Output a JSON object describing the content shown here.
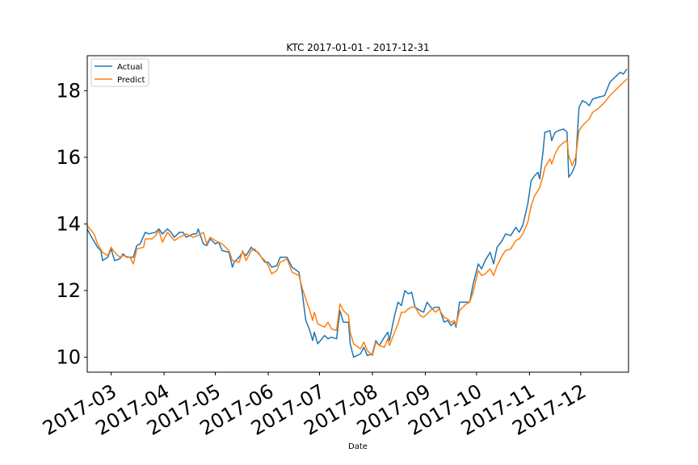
{
  "chart_data": {
    "type": "line",
    "title": "KTC 2017-01-01 - 2017-12-31",
    "xlabel": "Date",
    "ylabel": "",
    "xlim": [
      "2017-02-15",
      "2017-12-29"
    ],
    "ylim": [
      9.55,
      19.05
    ],
    "yticks": [
      10,
      12,
      14,
      16,
      18
    ],
    "xticks": [
      {
        "date": "2017-03-01",
        "label": "2017-03"
      },
      {
        "date": "2017-04-01",
        "label": "2017-04"
      },
      {
        "date": "2017-05-01",
        "label": "2017-05"
      },
      {
        "date": "2017-06-01",
        "label": "2017-06"
      },
      {
        "date": "2017-07-01",
        "label": "2017-07"
      },
      {
        "date": "2017-08-01",
        "label": "2017-08"
      },
      {
        "date": "2017-09-01",
        "label": "2017-09"
      },
      {
        "date": "2017-10-01",
        "label": "2017-10"
      },
      {
        "date": "2017-11-01",
        "label": "2017-11"
      },
      {
        "date": "2017-12-01",
        "label": "2017-12"
      }
    ],
    "grid": false,
    "legend": "upper left",
    "series": [
      {
        "name": "Actual",
        "color": "#1f77b4",
        "points": [
          [
            "2017-02-15",
            13.85
          ],
          [
            "2017-02-17",
            13.65
          ],
          [
            "2017-02-21",
            13.3
          ],
          [
            "2017-02-23",
            13.2
          ],
          [
            "2017-02-24",
            12.9
          ],
          [
            "2017-02-27",
            13.0
          ],
          [
            "2017-03-01",
            13.25
          ],
          [
            "2017-03-03",
            12.9
          ],
          [
            "2017-03-06",
            12.95
          ],
          [
            "2017-03-08",
            13.1
          ],
          [
            "2017-03-10",
            13.0
          ],
          [
            "2017-03-14",
            13.0
          ],
          [
            "2017-03-16",
            13.35
          ],
          [
            "2017-03-18",
            13.4
          ],
          [
            "2017-03-21",
            13.75
          ],
          [
            "2017-03-23",
            13.7
          ],
          [
            "2017-03-27",
            13.75
          ],
          [
            "2017-03-29",
            13.85
          ],
          [
            "2017-03-31",
            13.7
          ],
          [
            "2017-04-03",
            13.85
          ],
          [
            "2017-04-05",
            13.75
          ],
          [
            "2017-04-07",
            13.6
          ],
          [
            "2017-04-10",
            13.75
          ],
          [
            "2017-04-12",
            13.75
          ],
          [
            "2017-04-14",
            13.6
          ],
          [
            "2017-04-18",
            13.7
          ],
          [
            "2017-04-20",
            13.7
          ],
          [
            "2017-04-21",
            13.85
          ],
          [
            "2017-04-24",
            13.4
          ],
          [
            "2017-04-26",
            13.35
          ],
          [
            "2017-04-28",
            13.55
          ],
          [
            "2017-05-01",
            13.4
          ],
          [
            "2017-05-03",
            13.45
          ],
          [
            "2017-05-05",
            13.2
          ],
          [
            "2017-05-09",
            13.15
          ],
          [
            "2017-05-11",
            12.7
          ],
          [
            "2017-05-12",
            12.85
          ],
          [
            "2017-05-15",
            13.0
          ],
          [
            "2017-05-17",
            13.15
          ],
          [
            "2017-05-19",
            13.05
          ],
          [
            "2017-05-22",
            13.3
          ],
          [
            "2017-05-24",
            13.2
          ],
          [
            "2017-05-26",
            13.15
          ],
          [
            "2017-05-30",
            12.85
          ],
          [
            "2017-06-01",
            12.85
          ],
          [
            "2017-06-03",
            12.7
          ],
          [
            "2017-06-06",
            12.75
          ],
          [
            "2017-06-08",
            13.0
          ],
          [
            "2017-06-12",
            13.0
          ],
          [
            "2017-06-15",
            12.7
          ],
          [
            "2017-06-19",
            12.55
          ],
          [
            "2017-06-21",
            11.9
          ],
          [
            "2017-06-23",
            11.1
          ],
          [
            "2017-06-25",
            10.85
          ],
          [
            "2017-06-27",
            10.5
          ],
          [
            "2017-06-28",
            10.75
          ],
          [
            "2017-06-30",
            10.4
          ],
          [
            "2017-07-04",
            10.65
          ],
          [
            "2017-07-06",
            10.55
          ],
          [
            "2017-07-08",
            10.6
          ],
          [
            "2017-07-11",
            10.55
          ],
          [
            "2017-07-13",
            11.4
          ],
          [
            "2017-07-15",
            11.05
          ],
          [
            "2017-07-18",
            11.05
          ],
          [
            "2017-07-19",
            10.4
          ],
          [
            "2017-07-21",
            10.0
          ],
          [
            "2017-07-25",
            10.1
          ],
          [
            "2017-07-27",
            10.3
          ],
          [
            "2017-07-29",
            10.05
          ],
          [
            "2017-08-01",
            10.1
          ],
          [
            "2017-08-03",
            10.5
          ],
          [
            "2017-08-05",
            10.35
          ],
          [
            "2017-08-08",
            10.6
          ],
          [
            "2017-08-10",
            10.75
          ],
          [
            "2017-08-11",
            10.5
          ],
          [
            "2017-08-14",
            11.25
          ],
          [
            "2017-08-16",
            11.65
          ],
          [
            "2017-08-18",
            11.55
          ],
          [
            "2017-08-20",
            12.0
          ],
          [
            "2017-08-22",
            11.9
          ],
          [
            "2017-08-24",
            11.95
          ],
          [
            "2017-08-26",
            11.5
          ],
          [
            "2017-08-29",
            11.4
          ],
          [
            "2017-08-31",
            11.35
          ],
          [
            "2017-09-02",
            11.65
          ],
          [
            "2017-09-05",
            11.45
          ],
          [
            "2017-09-07",
            11.5
          ],
          [
            "2017-09-09",
            11.5
          ],
          [
            "2017-09-12",
            11.05
          ],
          [
            "2017-09-14",
            11.1
          ],
          [
            "2017-09-16",
            10.95
          ],
          [
            "2017-09-18",
            11.05
          ],
          [
            "2017-09-19",
            10.9
          ],
          [
            "2017-09-21",
            11.65
          ],
          [
            "2017-09-25",
            11.65
          ],
          [
            "2017-09-27",
            11.65
          ],
          [
            "2017-09-29",
            12.2
          ],
          [
            "2017-10-02",
            12.8
          ],
          [
            "2017-10-04",
            12.65
          ],
          [
            "2017-10-06",
            12.9
          ],
          [
            "2017-10-09",
            13.15
          ],
          [
            "2017-10-11",
            12.8
          ],
          [
            "2017-10-13",
            13.3
          ],
          [
            "2017-10-16",
            13.5
          ],
          [
            "2017-10-18",
            13.7
          ],
          [
            "2017-10-21",
            13.65
          ],
          [
            "2017-10-24",
            13.9
          ],
          [
            "2017-10-26",
            13.75
          ],
          [
            "2017-10-28",
            13.95
          ],
          [
            "2017-10-31",
            14.6
          ],
          [
            "2017-11-02",
            15.3
          ],
          [
            "2017-11-04",
            15.45
          ],
          [
            "2017-11-06",
            15.55
          ],
          [
            "2017-11-07",
            15.35
          ],
          [
            "2017-11-09",
            16.2
          ],
          [
            "2017-11-10",
            16.75
          ],
          [
            "2017-11-13",
            16.8
          ],
          [
            "2017-11-14",
            16.5
          ],
          [
            "2017-11-16",
            16.75
          ],
          [
            "2017-11-18",
            16.8
          ],
          [
            "2017-11-21",
            16.85
          ],
          [
            "2017-11-23",
            16.75
          ],
          [
            "2017-11-24",
            15.4
          ],
          [
            "2017-11-26",
            15.55
          ],
          [
            "2017-11-28",
            15.8
          ],
          [
            "2017-11-30",
            17.5
          ],
          [
            "2017-12-02",
            17.7
          ],
          [
            "2017-12-04",
            17.65
          ],
          [
            "2017-12-06",
            17.55
          ],
          [
            "2017-12-08",
            17.75
          ],
          [
            "2017-12-11",
            17.8
          ],
          [
            "2017-12-15",
            17.85
          ],
          [
            "2017-12-18",
            18.25
          ],
          [
            "2017-12-22",
            18.45
          ],
          [
            "2017-12-24",
            18.55
          ],
          [
            "2017-12-26",
            18.5
          ],
          [
            "2017-12-28",
            18.65
          ]
        ]
      },
      {
        "name": "Predict",
        "color": "#ff7f0e",
        "points": [
          [
            "2017-02-15",
            13.95
          ],
          [
            "2017-02-19",
            13.7
          ],
          [
            "2017-02-21",
            13.4
          ],
          [
            "2017-02-24",
            13.15
          ],
          [
            "2017-02-27",
            13.05
          ],
          [
            "2017-03-01",
            13.3
          ],
          [
            "2017-03-03",
            13.15
          ],
          [
            "2017-03-06",
            13.0
          ],
          [
            "2017-03-08",
            13.05
          ],
          [
            "2017-03-12",
            13.0
          ],
          [
            "2017-03-14",
            12.8
          ],
          [
            "2017-03-16",
            13.25
          ],
          [
            "2017-03-20",
            13.3
          ],
          [
            "2017-03-21",
            13.55
          ],
          [
            "2017-03-25",
            13.55
          ],
          [
            "2017-03-27",
            13.65
          ],
          [
            "2017-03-29",
            13.8
          ],
          [
            "2017-03-31",
            13.45
          ],
          [
            "2017-04-03",
            13.75
          ],
          [
            "2017-04-07",
            13.5
          ],
          [
            "2017-04-10",
            13.6
          ],
          [
            "2017-04-14",
            13.7
          ],
          [
            "2017-04-18",
            13.6
          ],
          [
            "2017-04-21",
            13.65
          ],
          [
            "2017-04-24",
            13.75
          ],
          [
            "2017-04-26",
            13.4
          ],
          [
            "2017-04-28",
            13.6
          ],
          [
            "2017-05-01",
            13.5
          ],
          [
            "2017-05-05",
            13.4
          ],
          [
            "2017-05-09",
            13.2
          ],
          [
            "2017-05-11",
            12.9
          ],
          [
            "2017-05-15",
            12.85
          ],
          [
            "2017-05-17",
            13.2
          ],
          [
            "2017-05-19",
            12.9
          ],
          [
            "2017-05-22",
            13.2
          ],
          [
            "2017-05-24",
            13.25
          ],
          [
            "2017-05-28",
            13.0
          ],
          [
            "2017-05-30",
            12.9
          ],
          [
            "2017-06-01",
            12.75
          ],
          [
            "2017-06-03",
            12.5
          ],
          [
            "2017-06-06",
            12.6
          ],
          [
            "2017-06-08",
            12.85
          ],
          [
            "2017-06-12",
            12.95
          ],
          [
            "2017-06-15",
            12.55
          ],
          [
            "2017-06-19",
            12.45
          ],
          [
            "2017-06-21",
            12.05
          ],
          [
            "2017-06-23",
            11.75
          ],
          [
            "2017-06-25",
            11.45
          ],
          [
            "2017-06-27",
            11.1
          ],
          [
            "2017-06-28",
            11.35
          ],
          [
            "2017-06-30",
            11.0
          ],
          [
            "2017-07-04",
            10.9
          ],
          [
            "2017-07-06",
            11.05
          ],
          [
            "2017-07-08",
            10.85
          ],
          [
            "2017-07-11",
            10.8
          ],
          [
            "2017-07-13",
            11.6
          ],
          [
            "2017-07-15",
            11.4
          ],
          [
            "2017-07-18",
            11.25
          ],
          [
            "2017-07-19",
            10.75
          ],
          [
            "2017-07-21",
            10.4
          ],
          [
            "2017-07-25",
            10.25
          ],
          [
            "2017-07-27",
            10.45
          ],
          [
            "2017-07-29",
            10.2
          ],
          [
            "2017-08-01",
            10.05
          ],
          [
            "2017-08-03",
            10.45
          ],
          [
            "2017-08-05",
            10.35
          ],
          [
            "2017-08-08",
            10.3
          ],
          [
            "2017-08-10",
            10.55
          ],
          [
            "2017-08-11",
            10.35
          ],
          [
            "2017-08-14",
            10.75
          ],
          [
            "2017-08-16",
            11.0
          ],
          [
            "2017-08-18",
            11.35
          ],
          [
            "2017-08-20",
            11.35
          ],
          [
            "2017-08-22",
            11.45
          ],
          [
            "2017-08-24",
            11.5
          ],
          [
            "2017-08-26",
            11.5
          ],
          [
            "2017-08-29",
            11.25
          ],
          [
            "2017-08-31",
            11.2
          ],
          [
            "2017-09-02",
            11.3
          ],
          [
            "2017-09-05",
            11.45
          ],
          [
            "2017-09-07",
            11.35
          ],
          [
            "2017-09-09",
            11.45
          ],
          [
            "2017-09-12",
            11.2
          ],
          [
            "2017-09-14",
            11.15
          ],
          [
            "2017-09-16",
            11.05
          ],
          [
            "2017-09-18",
            11.1
          ],
          [
            "2017-09-19",
            10.95
          ],
          [
            "2017-09-21",
            11.4
          ],
          [
            "2017-09-25",
            11.6
          ],
          [
            "2017-09-27",
            11.65
          ],
          [
            "2017-09-29",
            11.95
          ],
          [
            "2017-10-02",
            12.6
          ],
          [
            "2017-10-04",
            12.45
          ],
          [
            "2017-10-06",
            12.5
          ],
          [
            "2017-10-09",
            12.65
          ],
          [
            "2017-10-11",
            12.45
          ],
          [
            "2017-10-13",
            12.75
          ],
          [
            "2017-10-16",
            13.05
          ],
          [
            "2017-10-18",
            13.2
          ],
          [
            "2017-10-21",
            13.25
          ],
          [
            "2017-10-24",
            13.5
          ],
          [
            "2017-10-26",
            13.55
          ],
          [
            "2017-10-28",
            13.7
          ],
          [
            "2017-10-31",
            14.05
          ],
          [
            "2017-11-02",
            14.55
          ],
          [
            "2017-11-04",
            14.85
          ],
          [
            "2017-11-06",
            15.0
          ],
          [
            "2017-11-07",
            15.1
          ],
          [
            "2017-11-09",
            15.45
          ],
          [
            "2017-11-10",
            15.7
          ],
          [
            "2017-11-13",
            15.95
          ],
          [
            "2017-11-14",
            15.8
          ],
          [
            "2017-11-16",
            16.1
          ],
          [
            "2017-11-18",
            16.3
          ],
          [
            "2017-11-21",
            16.45
          ],
          [
            "2017-11-23",
            16.5
          ],
          [
            "2017-11-24",
            16.05
          ],
          [
            "2017-11-26",
            15.75
          ],
          [
            "2017-11-28",
            16.0
          ],
          [
            "2017-11-30",
            16.8
          ],
          [
            "2017-12-02",
            16.95
          ],
          [
            "2017-12-04",
            17.05
          ],
          [
            "2017-12-06",
            17.15
          ],
          [
            "2017-12-08",
            17.35
          ],
          [
            "2017-12-11",
            17.45
          ],
          [
            "2017-12-15",
            17.65
          ],
          [
            "2017-12-18",
            17.85
          ],
          [
            "2017-12-22",
            18.05
          ],
          [
            "2017-12-24",
            18.15
          ],
          [
            "2017-12-26",
            18.25
          ],
          [
            "2017-12-28",
            18.35
          ]
        ]
      }
    ]
  }
}
